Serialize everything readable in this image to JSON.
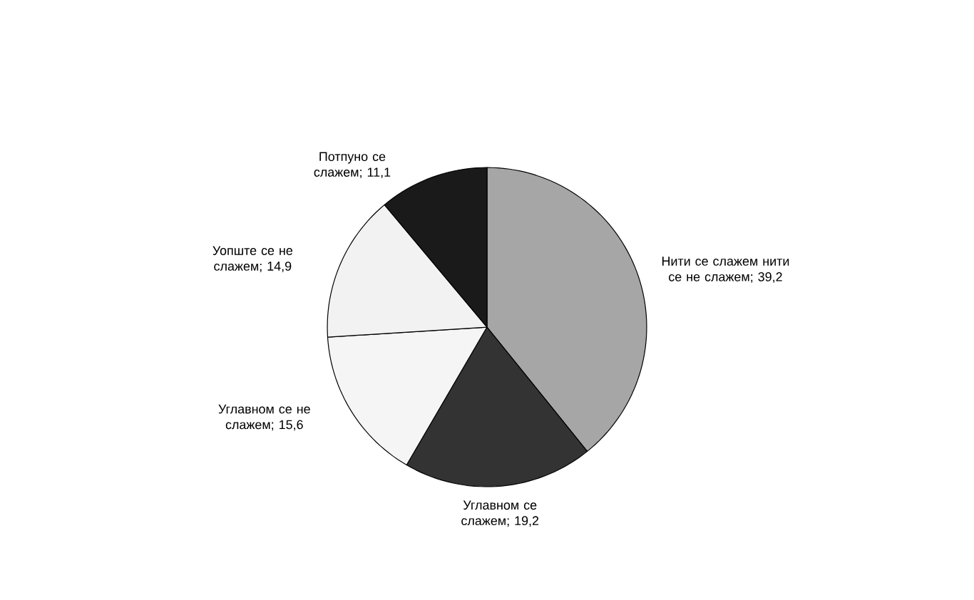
{
  "chart_data": {
    "type": "pie",
    "categories": [
      "Нити се слажем нити се не слажем; 39,2",
      "Углавном  се слажем; 19,2",
      "Углавном се не слажем; 15,6",
      "Уопште се не слажем; 14,9",
      "Потпуно се слажем; 11,1"
    ],
    "values": [
      39.2,
      19.2,
      15.6,
      14.9,
      11.1
    ],
    "colors": [
      "#a6a6a6",
      "#333333",
      "#f5f5f5",
      "#f2f2f2",
      "#1a1a1a"
    ]
  }
}
